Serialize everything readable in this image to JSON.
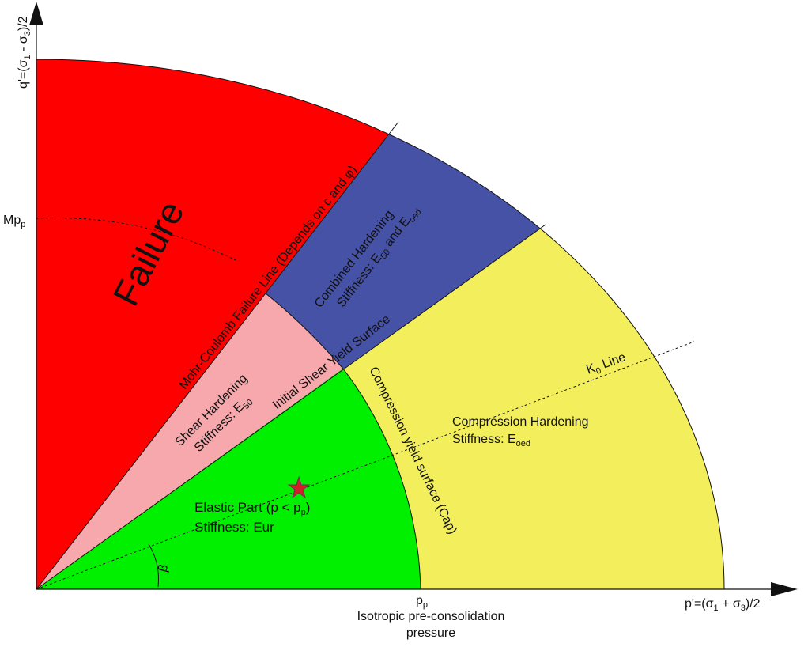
{
  "axes": {
    "y_label": {
      "main": "q'=(σ",
      "s1": "1",
      "mid": " - σ",
      "s3": "3",
      "end": ")/2"
    },
    "x_label": {
      "main": "p'=(σ",
      "s1": "1",
      "mid": " + σ",
      "s3": "3",
      "end": ")/2"
    },
    "mp_tick": {
      "main": "Mp",
      "sub": "p"
    },
    "pp_tick": {
      "main": "p",
      "sub": "p"
    },
    "pp_caption": [
      "Isotropic pre-consolidation",
      "pressure"
    ]
  },
  "regions": {
    "failure": {
      "label": "Failure",
      "color": "#ff0000"
    },
    "combined": {
      "line1": "Combined Hardening",
      "line2_a": "Stiffness: E",
      "line2_sub1": "50",
      "line2_b": " and E",
      "line2_sub2": "oed",
      "color": "#4652a5"
    },
    "shear": {
      "line1": "Shear Hardening",
      "line2_a": "Stiffness: E",
      "line2_sub": "50",
      "color": "#f6a8ac"
    },
    "compression": {
      "line1": "Compression Hardening",
      "line2_a": "Stiffness: E",
      "line2_sub": "oed",
      "color": "#f3ef5c"
    },
    "elastic": {
      "line1_a": "Elastic Part (p < p",
      "line1_sub": "p",
      "line1_b": ")",
      "line2": "Stiffness: Eur",
      "color": "#00f000"
    }
  },
  "lines": {
    "mohr_coulomb": "Mohr-Coulomb Failure Line (Depends on c and φ)",
    "initial_shear": "Initial Shear Yield Surface",
    "cap": "Compression yield surface (Cap)",
    "k0": {
      "main": "K",
      "sub": "0",
      "rest": " Line"
    },
    "beta": "β"
  },
  "marker": {
    "icon": "star-icon",
    "color": "#d02028"
  }
}
